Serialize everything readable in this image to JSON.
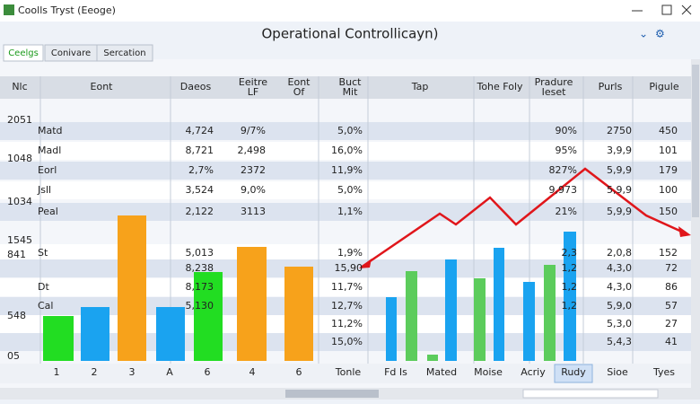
{
  "window": {
    "title": "Coolls Tryst (Eeoge)"
  },
  "tabs": [
    "Ceelgs",
    "Conivare",
    "Sercation"
  ],
  "header": {
    "title": "Operational Controllicayn)"
  },
  "table": {
    "columns": [
      "Nlc",
      "Eont",
      "Daeos",
      [
        "Eeitre",
        "LF"
      ],
      [
        "Eont",
        "Of"
      ],
      [
        "Buct",
        "Mit"
      ],
      "Tap",
      "Tohe Foly",
      [
        "Pradure",
        "Ieset"
      ],
      "Purls",
      "Pigule"
    ],
    "rows": [
      [
        "Matd",
        "4,724",
        "9/7%",
        "5,0%",
        "90%",
        "2750",
        "450"
      ],
      [
        "Madl",
        "8,721",
        "2,498",
        "16,0%",
        "95%",
        "3,9,9",
        "101"
      ],
      [
        "Eorl",
        "2,7%",
        "2372",
        "11,9%",
        "827%",
        "5,9,9",
        "179"
      ],
      [
        "Jsll",
        "3,524",
        "9,0%",
        "5,0%",
        "9,973",
        "5,9,9",
        "100"
      ],
      [
        "Peal",
        "2,122",
        "3113",
        "1,1%",
        "21%",
        "5,9,9",
        "150"
      ],
      [
        "St",
        "5,013",
        null,
        "1,9%",
        "2,3",
        "2,0,8",
        "152"
      ],
      [
        null,
        "8,238",
        null,
        "15,90",
        "1,2",
        "4,3,0",
        "72"
      ],
      [
        "Dt",
        "8,173",
        null,
        "11,7%",
        "1,2",
        "4,3,0",
        "86"
      ],
      [
        "Cal",
        "5,130",
        null,
        "12,7%",
        "1,2",
        "5,9,0",
        "57"
      ],
      [
        null,
        null,
        null,
        "11,2%",
        null,
        "5,3,0",
        "27"
      ],
      [
        null,
        null,
        null,
        "15,0%",
        null,
        "5,4,3",
        "41"
      ]
    ]
  },
  "axis_labels": [
    "2051",
    "1048",
    "1034",
    "1545",
    "841",
    "548",
    "05"
  ],
  "x_labels": [
    "1",
    "2",
    "3",
    "A",
    "6",
    "4",
    "6",
    "Tonle",
    "Fd Is",
    "Mated",
    "Moise",
    "Acriy",
    "Rudy",
    "Sioe",
    "Tyes"
  ]
}
